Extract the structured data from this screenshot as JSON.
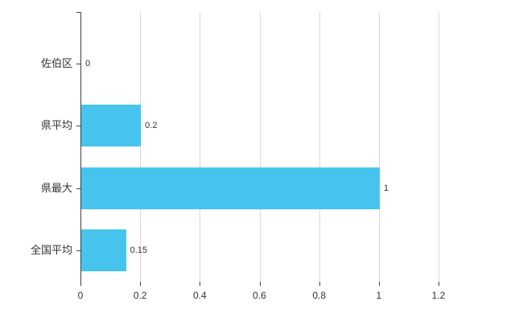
{
  "chart_data": {
    "type": "bar",
    "orientation": "horizontal",
    "title": "",
    "categories": [
      "佐伯区",
      "県平均",
      "県最大",
      "全国平均"
    ],
    "values": [
      0,
      0.2,
      1,
      0.15
    ],
    "value_labels": [
      "0",
      "0.2",
      "1",
      "0.15"
    ],
    "x_ticks": [
      0,
      0.2,
      0.4,
      0.6,
      0.8,
      1,
      1.2
    ],
    "x_tick_labels": [
      "0",
      "0.2",
      "0.4",
      "0.6",
      "0.8",
      "1",
      "1.2"
    ],
    "xlim": [
      0,
      1.2
    ],
    "grid": true,
    "legend": false,
    "bar_color": "#46c4ed",
    "grid_color": "#d9d9d9",
    "axis_color": "#404040",
    "text_color": "#333333"
  }
}
